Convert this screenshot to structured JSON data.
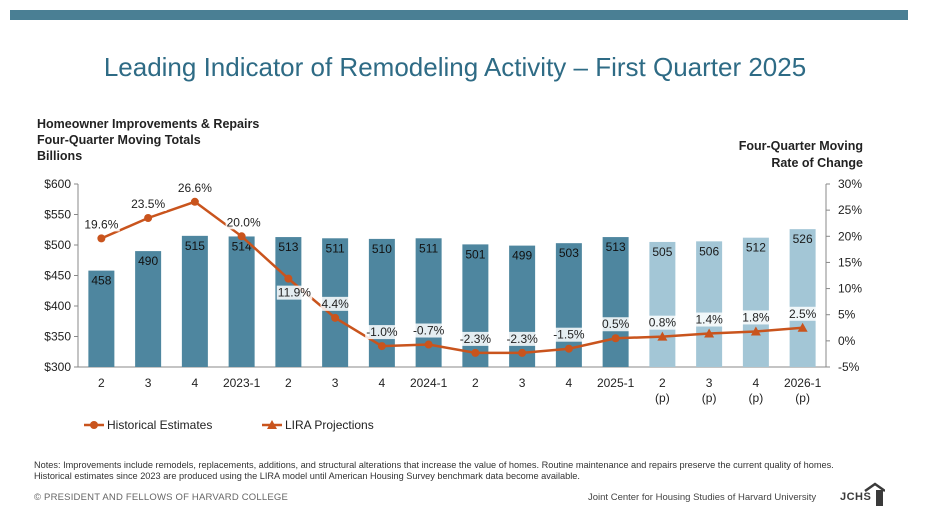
{
  "title": "Leading Indicator of Remodeling Activity – First Quarter 2025",
  "left_axis_title": [
    "Homeowner Improvements & Repairs",
    "Four-Quarter Moving Totals",
    "Billions"
  ],
  "right_axis_title": [
    "Four-Quarter Moving",
    "Rate of Change"
  ],
  "notes": "Notes: Improvements include remodels, replacements, additions, and structural alterations that increase the value of homes. Routine maintenance and repairs preserve the current quality of homes. Historical estimates since 2023 are produced using the LIRA model until American Housing Survey benchmark data become available.",
  "copyright": "© PRESIDENT AND FELLOWS OF HARVARD COLLEGE",
  "footer_org": "Joint Center for Housing Studies of Harvard University",
  "footer_logo": "JCHS",
  "colors": {
    "accent_bar": "#4a7f94",
    "title": "#2e6b85",
    "historical_bar": "#4e869f",
    "projection_bar": "#a3c6d6",
    "line": "#c9541d"
  },
  "chart_data": {
    "type": "bar",
    "categories": [
      "2",
      "3",
      "4",
      "2023-1",
      "2",
      "3",
      "4",
      "2024-1",
      "2",
      "3",
      "4",
      "2025-1",
      "2\n(p)",
      "3\n(p)",
      "4\n(p)",
      "2026-1\n(p)"
    ],
    "left_axis": {
      "ylim": [
        300,
        600
      ],
      "ticks": [
        "$300",
        "$350",
        "$400",
        "$450",
        "$500",
        "$550",
        "$600"
      ]
    },
    "right_axis": {
      "ylim": [
        -5,
        30
      ],
      "ticks": [
        "-5%",
        "0%",
        "5%",
        "10%",
        "15%",
        "20%",
        "25%",
        "30%"
      ]
    },
    "series": [
      {
        "type": "bar",
        "axis": "left",
        "values": [
          458,
          490,
          515,
          514,
          513,
          511,
          510,
          511,
          501,
          499,
          503,
          513,
          505,
          506,
          512,
          526
        ],
        "projection": [
          false,
          false,
          false,
          false,
          false,
          false,
          false,
          false,
          false,
          false,
          false,
          false,
          true,
          true,
          true,
          true
        ]
      },
      {
        "type": "line",
        "axis": "right",
        "name": "Historical Estimates",
        "marker": "circle",
        "values": [
          19.6,
          23.5,
          26.6,
          20.0,
          11.9,
          4.4,
          -1.0,
          -0.7,
          -2.3,
          -2.3,
          -1.5,
          0.5,
          null,
          null,
          null,
          null
        ],
        "labels": [
          "19.6%",
          "23.5%",
          "26.6%",
          "20.0%",
          "11.9%",
          "4.4%",
          "-1.0%",
          "-0.7%",
          "-2.3%",
          "-2.3%",
          "-1.5%",
          "0.5%",
          "",
          "",
          "",
          ""
        ]
      },
      {
        "type": "line",
        "axis": "right",
        "name": "LIRA Projections",
        "marker": "triangle",
        "values": [
          null,
          null,
          null,
          null,
          null,
          null,
          null,
          null,
          null,
          null,
          null,
          0.5,
          0.8,
          1.4,
          1.8,
          2.5
        ],
        "labels": [
          "",
          "",
          "",
          "",
          "",
          "",
          "",
          "",
          "",
          "",
          "",
          "",
          "0.8%",
          "1.4%",
          "1.8%",
          "2.5%"
        ]
      }
    ],
    "legend": [
      "Historical Estimates",
      "LIRA Projections"
    ],
    "legend_position": "bottom-left",
    "grid": false
  }
}
